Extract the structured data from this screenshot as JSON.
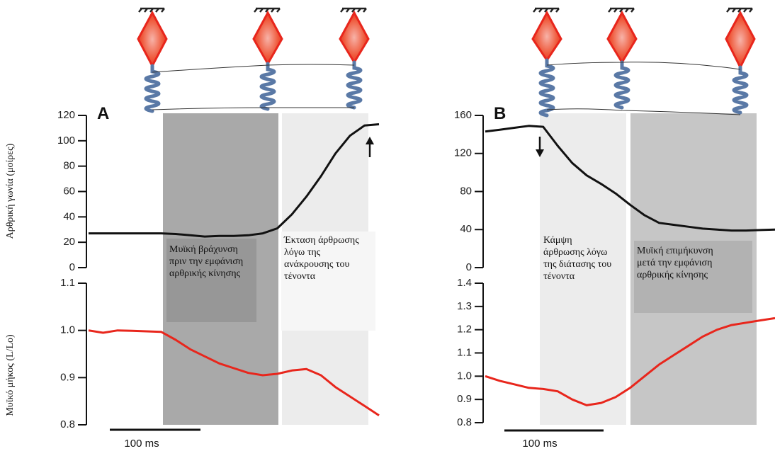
{
  "chart_data": [
    {
      "type": "line",
      "title": "A",
      "ylabel": "Αρθρική γωνία (μοίρες)",
      "color": "#111111",
      "ylim": [
        0,
        120
      ],
      "yticks": [
        0,
        20,
        40,
        60,
        80,
        100,
        120
      ],
      "values": [
        27,
        27,
        27,
        27,
        27,
        27,
        26.5,
        25.5,
        24.5,
        25,
        25,
        25.5,
        27,
        31,
        42,
        56,
        72,
        90,
        104,
        112,
        113
      ],
      "annotations": [
        {
          "lines": [
            "Μυϊκή βράχυνση",
            "πριν την εμφάνιση",
            "αρθρικής κίνησης"
          ]
        },
        {
          "lines": [
            "Έκταση άρθρωσης",
            "λόγω της",
            "ανάκρουσης του",
            "τένοντα"
          ]
        }
      ]
    },
    {
      "type": "line",
      "ylabel": "Μυϊκό μήκος (L/Lo)",
      "color": "#e8261c",
      "scale_bar_label": "100 ms",
      "ylim": [
        0.8,
        1.1
      ],
      "yticks": [
        0.8,
        0.9,
        {
          "value": 1,
          "label": "1.0"
        },
        1.1
      ],
      "values": [
        1.0,
        0.995,
        1.0,
        0.999,
        0.998,
        0.997,
        0.98,
        0.96,
        0.945,
        0.93,
        0.92,
        0.91,
        0.905,
        0.908,
        0.915,
        0.918,
        0.905,
        0.88,
        0.86,
        0.84,
        0.82
      ]
    },
    {
      "type": "line",
      "title": "B",
      "color": "#111111",
      "ylim": [
        0,
        160
      ],
      "yticks": [
        0,
        40,
        80,
        120,
        160
      ],
      "values": [
        143,
        145,
        147,
        149,
        148,
        128,
        110,
        97,
        88,
        78,
        66,
        55,
        47,
        45,
        43,
        41,
        40,
        39,
        39,
        39.5,
        40
      ],
      "annotations": [
        {
          "lines": [
            "Κάμψη",
            "άρθρωσης λόγω",
            "της διάτασης του",
            "τένοντα"
          ]
        },
        {
          "lines": [
            "Μυϊκή επιμήκυνση",
            "μετά την εμφάνιση",
            "αρθρικής κίνησης"
          ]
        }
      ]
    },
    {
      "type": "line",
      "color": "#e8261c",
      "scale_bar_label": "100 ms",
      "ylim": [
        0.8,
        1.4
      ],
      "yticks": [
        0.8,
        0.9,
        {
          "value": 1,
          "label": "1.0"
        },
        1.1,
        1.2,
        1.3,
        1.4
      ],
      "values": [
        1.0,
        0.98,
        0.965,
        0.95,
        0.945,
        0.935,
        0.9,
        0.875,
        0.885,
        0.91,
        0.95,
        1.0,
        1.05,
        1.09,
        1.13,
        1.17,
        1.2,
        1.22,
        1.23,
        1.24,
        1.25
      ]
    }
  ]
}
